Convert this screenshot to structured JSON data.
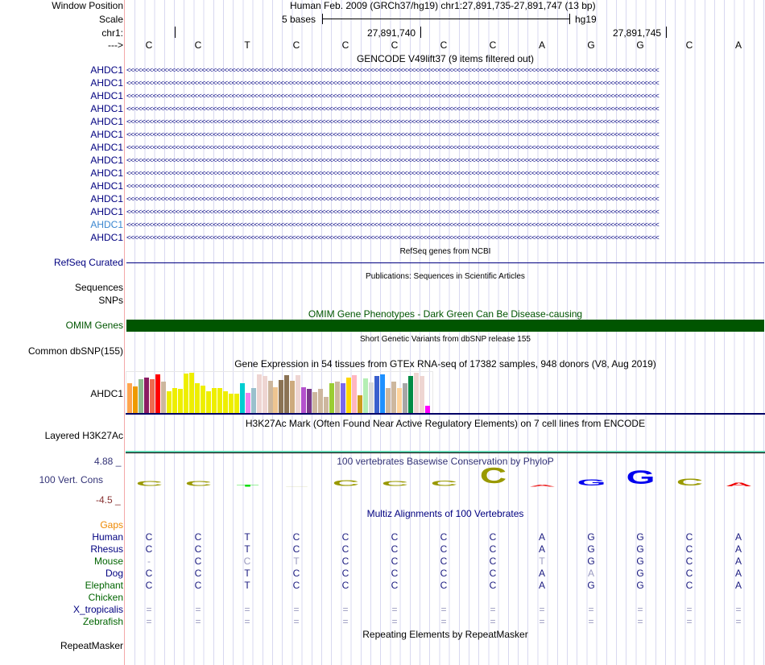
{
  "header": {
    "window_position_label": "Window Position",
    "window_position": "Human Feb. 2009 (GRCh37/hg19)   chr1:27,891,735-27,891,747 (13 bp)",
    "scale_label": "Scale",
    "scale_text": "5 bases",
    "assembly": "hg19",
    "chrom_label": "chr1:",
    "pos1": "27,891,740",
    "pos2": "27,891,745",
    "strand_label": "--->"
  },
  "sequence": [
    "C",
    "C",
    "T",
    "C",
    "C",
    "C",
    "C",
    "C",
    "A",
    "G",
    "G",
    "C",
    "A"
  ],
  "gencode": {
    "title": "GENCODE V49lift37 (9 items filtered out)",
    "items": [
      "AHDC1",
      "AHDC1",
      "AHDC1",
      "AHDC1",
      "AHDC1",
      "AHDC1",
      "AHDC1",
      "AHDC1",
      "AHDC1",
      "AHDC1",
      "AHDC1",
      "AHDC1",
      "AHDC1",
      "AHDC1"
    ],
    "highlight_index": 12,
    "arrows": "<<<<<<<<<<<<<<<<<<<<<<<<<<<<<<<<<<<<<<<<<<<<<<<<<<<<<<<<<<<<<<<<<<<<<<<<<<<<<<<<<<<<<<<<<<<<<<<<<<<<<<<<<<<<<<<<<<<<<<<<<<<<<<<<<<<<<<<<<<<<<<"
  },
  "refseq": {
    "title": "RefSeq genes from NCBI",
    "label": "RefSeq Curated"
  },
  "publications": {
    "title": "Publications: Sequences in Scientific Articles",
    "label1": "Sequences",
    "label2": "SNPs"
  },
  "omim": {
    "title": "OMIM Gene Phenotypes - Dark Green Can Be Disease-causing",
    "label": "OMIM Genes",
    "color": "#005500"
  },
  "dbsnp": {
    "title": "Short Genetic Variants from dbSNP release 155",
    "label": "Common dbSNP(155)"
  },
  "gtex": {
    "title": "Gene Expression in 54 tissues from GTEx RNA-seq of 17382 samples, 948 donors (V8, Aug 2019)",
    "label": "AHDC1",
    "values": [
      0.75,
      0.66,
      0.85,
      0.89,
      0.85,
      0.96,
      0.79,
      0.55,
      0.62,
      0.6,
      0.98,
      1.0,
      0.74,
      0.68,
      0.55,
      0.62,
      0.63,
      0.55,
      0.49,
      0.49,
      0.75,
      0.51,
      0.62,
      0.96,
      0.92,
      0.81,
      0.64,
      0.83,
      0.94,
      0.81,
      0.94,
      0.64,
      0.6,
      0.53,
      0.6,
      0.42,
      0.75,
      0.79,
      0.75,
      0.89,
      0.94,
      0.45,
      0.87,
      0.77,
      0.92,
      0.96,
      0.62,
      0.79,
      0.62,
      0.75,
      0.92,
      1.0,
      0.92,
      0.19
    ],
    "colors": [
      "#FFA54F",
      "#EE9A00",
      "#8FBC8F",
      "#8B1C62",
      "#EE6A50",
      "#FF0000",
      "#CDB79E",
      "#EEEE00",
      "#EEEE00",
      "#EEEE00",
      "#EEEE00",
      "#EEEE00",
      "#EEEE00",
      "#EEEE00",
      "#EEEE00",
      "#EEEE00",
      "#EEEE00",
      "#EEEE00",
      "#EEEE00",
      "#EEEE00",
      "#00CED1",
      "#EE82EE",
      "#9AC0CD",
      "#EED5D2",
      "#EED5D2",
      "#CDB79E",
      "#EEC591",
      "#8B7355",
      "#8B7355",
      "#CDAA7D",
      "#EED5D2",
      "#B452CD",
      "#7A378B",
      "#CDB79E",
      "#CDB79E",
      "#CDB79E",
      "#9ACD32",
      "#CDB79E",
      "#7B68EE",
      "#FFD700",
      "#FFB6C1",
      "#CD9B1D",
      "#B4EEB4",
      "#D9D9D9",
      "#3A5FCD",
      "#1E90FF",
      "#CDB79E",
      "#CDB79E",
      "#FFD39B",
      "#A6A6A6",
      "#008B45",
      "#EED5D2",
      "#EED5D2",
      "#FF00FF"
    ]
  },
  "h3k27ac": {
    "title": "H3K27Ac Mark (Often Found Near Active Regulatory Elements) on 7 cell lines from ENCODE",
    "label": "Layered H3K27Ac"
  },
  "phylop": {
    "title": "100 vertebrates Basewise Conservation by PhyloP",
    "label": "100 Vert. Cons",
    "max": "4.88 _",
    "min": "-4.5 _",
    "logo": [
      {
        "b": "C",
        "h": 0.2,
        "c": "#999900"
      },
      {
        "b": "C",
        "h": 0.2,
        "c": "#999900"
      },
      {
        "b": "T",
        "h": 0.1,
        "c": "#00dd00"
      },
      {
        "b": "_",
        "h": 0.1,
        "c": "#c8c890"
      },
      {
        "b": "C",
        "h": 0.25,
        "c": "#999900"
      },
      {
        "b": "C",
        "h": 0.2,
        "c": "#999900"
      },
      {
        "b": "C",
        "h": 0.22,
        "c": "#999900"
      },
      {
        "b": "C",
        "h": 0.7,
        "c": "#999900"
      },
      {
        "b": "A",
        "h": 0.1,
        "c": "#ee3333"
      },
      {
        "b": "G",
        "h": 0.28,
        "c": "#0000ee"
      },
      {
        "b": "G",
        "h": 0.6,
        "c": "#0000ee"
      },
      {
        "b": "C",
        "h": 0.3,
        "c": "#999900"
      },
      {
        "b": "A",
        "h": 0.15,
        "c": "#ee0000"
      }
    ]
  },
  "multiz": {
    "title": "Multiz Alignments of 100 Vertebrates",
    "gaps_label": "Gaps",
    "species": [
      {
        "name": "Human",
        "color": "#000080",
        "bases": [
          "C",
          "C",
          "T",
          "C",
          "C",
          "C",
          "C",
          "C",
          "A",
          "G",
          "G",
          "C",
          "A"
        ]
      },
      {
        "name": "Rhesus",
        "color": "#000080",
        "bases": [
          "C",
          "C",
          "T",
          "C",
          "C",
          "C",
          "C",
          "C",
          "A",
          "G",
          "G",
          "C",
          "A"
        ]
      },
      {
        "name": "Mouse",
        "color": "#006400",
        "bases": [
          "-",
          "C",
          "C",
          "T",
          "C",
          "C",
          "C",
          "C",
          "T",
          "G",
          "G",
          "C",
          "A"
        ],
        "faint": [
          0,
          2,
          3,
          8
        ]
      },
      {
        "name": "Dog",
        "color": "#000080",
        "bases": [
          "C",
          "C",
          "T",
          "C",
          "C",
          "C",
          "C",
          "C",
          "A",
          "A",
          "G",
          "C",
          "A"
        ],
        "faint": [
          9
        ]
      },
      {
        "name": "Elephant",
        "color": "#006400",
        "bases": [
          "C",
          "C",
          "T",
          "C",
          "C",
          "C",
          "C",
          "C",
          "A",
          "G",
          "G",
          "C",
          "A"
        ]
      },
      {
        "name": "Chicken",
        "color": "#006400",
        "bases": []
      },
      {
        "name": "X_tropicalis",
        "color": "#000080",
        "bases": [
          "=",
          "=",
          "=",
          "=",
          "=",
          "=",
          "=",
          "=",
          "=",
          "=",
          "=",
          "=",
          "="
        ],
        "faint": [
          0,
          1,
          2,
          3,
          4,
          5,
          6,
          7,
          8,
          9,
          10,
          11,
          12
        ]
      },
      {
        "name": "Zebrafish",
        "color": "#006400",
        "bases": [
          "=",
          "=",
          "=",
          "=",
          "=",
          "=",
          "=",
          "=",
          "=",
          "=",
          "=",
          "=",
          "="
        ],
        "faint": [
          0,
          1,
          2,
          3,
          4,
          5,
          6,
          7,
          8,
          9,
          10,
          11,
          12
        ]
      }
    ]
  },
  "repeatmasker": {
    "title": "Repeating Elements by RepeatMasker",
    "label": "RepeatMasker"
  }
}
